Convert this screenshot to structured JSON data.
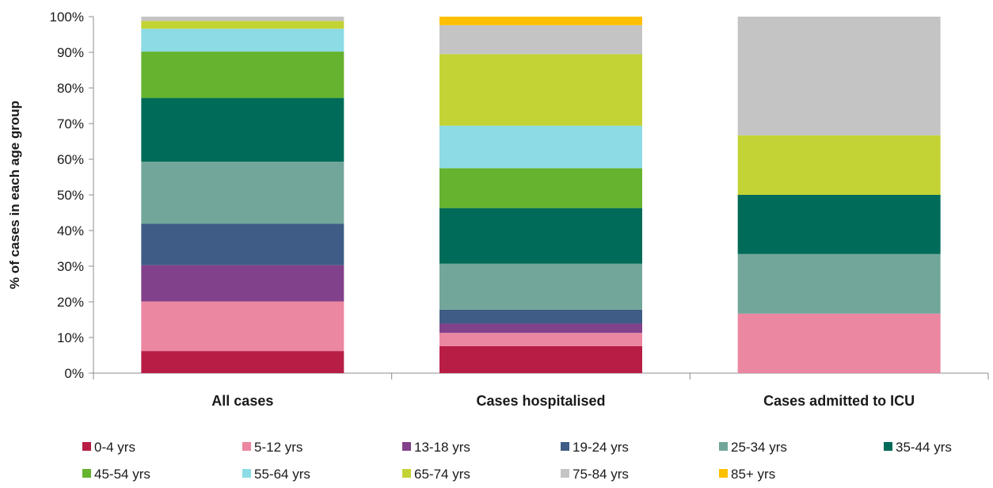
{
  "chart_data": {
    "type": "bar",
    "stacked": true,
    "normalized": true,
    "title": "",
    "xlabel": "",
    "ylabel": "% of cases in each age group",
    "ylim": [
      0,
      100
    ],
    "y_ticks": [
      "0%",
      "10%",
      "20%",
      "30%",
      "40%",
      "50%",
      "60%",
      "70%",
      "80%",
      "90%",
      "100%"
    ],
    "categories": [
      "All cases",
      "Cases hospitalised",
      "Cases admitted to ICU"
    ],
    "legend_position": "bottom",
    "grid": false,
    "series": [
      {
        "name": "0-4 yrs",
        "color": "#B81E45",
        "values": [
          6.2,
          7.6,
          0
        ]
      },
      {
        "name": "5-12 yrs",
        "color": "#EB87A0",
        "values": [
          13.9,
          3.7,
          16.7
        ]
      },
      {
        "name": "13-18 yrs",
        "color": "#82418B",
        "values": [
          10.2,
          2.6,
          0
        ]
      },
      {
        "name": "19-24 yrs",
        "color": "#3E5C85",
        "values": [
          11.6,
          3.9,
          0
        ]
      },
      {
        "name": "25-34 yrs",
        "color": "#72A69A",
        "values": [
          17.4,
          12.9,
          16.7
        ]
      },
      {
        "name": "35-44 yrs",
        "color": "#006B58",
        "values": [
          17.9,
          15.6,
          16.6
        ]
      },
      {
        "name": "45-54 yrs",
        "color": "#65B32E",
        "values": [
          13.0,
          11.2,
          0
        ]
      },
      {
        "name": "55-64 yrs",
        "color": "#8CDBE5",
        "values": [
          6.4,
          11.9,
          0
        ]
      },
      {
        "name": "65-74 yrs",
        "color": "#C3D335",
        "values": [
          2.2,
          20.1,
          16.7
        ]
      },
      {
        "name": "75-84 yrs",
        "color": "#C4C4C4",
        "values": [
          1.2,
          8.1,
          33.3
        ]
      },
      {
        "name": "85+ yrs",
        "color": "#FFC000",
        "values": [
          0,
          2.4,
          0
        ]
      }
    ]
  }
}
